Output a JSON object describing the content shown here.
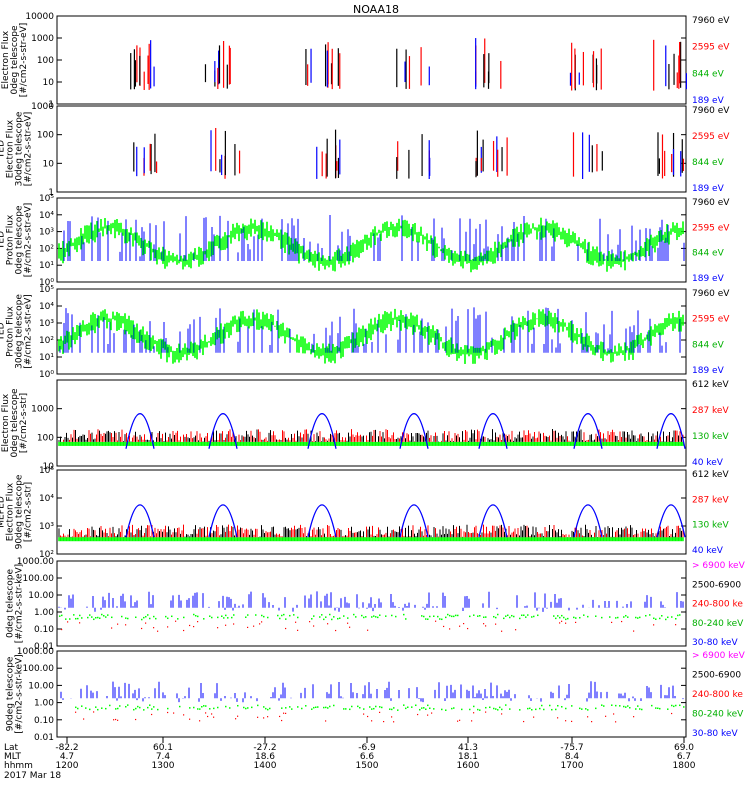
{
  "title": "NOAA18",
  "colors": {
    "black": "#000000",
    "red": "#ff0000",
    "green": "#00cc00",
    "lime": "#00ff00",
    "blue": "#0000ff",
    "magenta": "#ff00ff",
    "text_green": "#00b000"
  },
  "chart_data": [
    {
      "type": "line",
      "ylabel_lines": [
        "Electron Flux",
        "0deg telescope",
        "[#/cm2-s-str-eV]"
      ],
      "ylim": [
        1,
        10000
      ],
      "log": true,
      "yticks": [
        "1",
        "10",
        "100",
        "1000",
        "10000"
      ],
      "legend": [
        {
          "text": "7960 eV",
          "color": "#000000"
        },
        {
          "text": "2595 eV",
          "color": "#ff0000"
        },
        {
          "text": "844 eV",
          "color": "#00b000"
        },
        {
          "text": "189 eV",
          "color": "#0000ff"
        }
      ]
    },
    {
      "type": "line",
      "ylabel_lines": [
        "TED",
        "Electron Flux",
        "30deg telescope",
        "[#/cm2-s-str-eV]"
      ],
      "ylim": [
        1,
        1000
      ],
      "log": true,
      "yticks": [
        "1",
        "10",
        "100",
        "1000"
      ],
      "legend": [
        {
          "text": "7960 eV",
          "color": "#000000"
        },
        {
          "text": "2595 eV",
          "color": "#ff0000"
        },
        {
          "text": "844 eV",
          "color": "#00b000"
        },
        {
          "text": "189 eV",
          "color": "#0000ff"
        }
      ]
    },
    {
      "type": "line",
      "ylabel_lines": [
        "TED",
        "Proton Flux",
        "0deg telescope",
        "[#/cm2-s-str-eV]"
      ],
      "ylim": [
        1,
        100000
      ],
      "log": true,
      "yticks": [
        "10⁰",
        "10¹",
        "10²",
        "10³",
        "10⁴",
        "10⁵"
      ],
      "legend": [
        {
          "text": "7960 eV",
          "color": "#000000"
        },
        {
          "text": "2595 eV",
          "color": "#ff0000"
        },
        {
          "text": "844 eV",
          "color": "#00b000"
        },
        {
          "text": "189 eV",
          "color": "#0000ff"
        }
      ]
    },
    {
      "type": "line",
      "ylabel_lines": [
        "TED",
        "Proton Flux",
        "30deg telescope",
        "[#/cm2-s-str-eV]"
      ],
      "ylim": [
        1,
        100000
      ],
      "log": true,
      "yticks": [
        "10⁰",
        "10¹",
        "10²",
        "10³",
        "10⁴",
        "10⁵"
      ],
      "legend": [
        {
          "text": "7960 eV",
          "color": "#000000"
        },
        {
          "text": "2595 eV",
          "color": "#ff0000"
        },
        {
          "text": "844 eV",
          "color": "#00b000"
        },
        {
          "text": "189 eV",
          "color": "#0000ff"
        }
      ]
    },
    {
      "type": "line",
      "ylabel_lines": [
        "Electron Flux",
        "0deg telescope",
        "[#/cm2-s-str]"
      ],
      "ylim": [
        10,
        10000
      ],
      "log": true,
      "yticks": [
        "10",
        "100",
        "1000",
        ""
      ],
      "legend": [
        {
          "text": "612 keV",
          "color": "#000000"
        },
        {
          "text": "287 keV",
          "color": "#ff0000"
        },
        {
          "text": "130 keV",
          "color": "#00b000"
        },
        {
          "text": "40 keV",
          "color": "#0000ff"
        }
      ]
    },
    {
      "type": "line",
      "ylabel_lines": [
        "MEPED",
        "Electron Flux",
        "90deg telescope",
        "[#/cm2-s-str]"
      ],
      "ylim": [
        100,
        100000
      ],
      "log": true,
      "yticks": [
        "10²",
        "10³",
        "10⁴",
        "10⁵"
      ],
      "legend": [
        {
          "text": "612 keV",
          "color": "#000000"
        },
        {
          "text": "287 keV",
          "color": "#ff0000"
        },
        {
          "text": "130 keV",
          "color": "#00b000"
        },
        {
          "text": "40 keV",
          "color": "#0000ff"
        }
      ]
    },
    {
      "type": "line",
      "ylabel_lines": [
        "0deg telescope",
        "[#/cm2-s-str-keV]"
      ],
      "ylim": [
        0.01,
        1000
      ],
      "log": true,
      "yticks": [
        "0.01",
        "0.10",
        "1.00",
        "10.00",
        "100.00",
        "1000.00"
      ],
      "legend": [
        {
          "text": "> 6900 keV",
          "color": "#ff00ff"
        },
        {
          "text": "2500-6900",
          "color": "#000000"
        },
        {
          "text": "240-800 ke",
          "color": "#ff0000"
        },
        {
          "text": "80-240 keV",
          "color": "#00b000"
        },
        {
          "text": "30-80 keV",
          "color": "#0000ff"
        }
      ]
    },
    {
      "type": "line",
      "ylabel_lines": [
        "90deg telescope",
        "[#/cm2-s-str-keV]"
      ],
      "ylim": [
        0.01,
        1000
      ],
      "log": true,
      "yticks": [
        "0.01",
        "0.10",
        "1.00",
        "10.00",
        "100.00",
        "1000.00"
      ],
      "legend": [
        {
          "text": "> 6900 keV",
          "color": "#ff00ff"
        },
        {
          "text": "2500-6900",
          "color": "#000000"
        },
        {
          "text": "240-800 ke",
          "color": "#ff0000"
        },
        {
          "text": "80-240 keV",
          "color": "#00b000"
        },
        {
          "text": "30-80 keV",
          "color": "#0000ff"
        }
      ]
    }
  ],
  "x_axis": {
    "row_labels": [
      "Lat",
      "MLT",
      "hhmm"
    ],
    "lat": [
      "-82.2",
      "60.1",
      "-27.2",
      "-6.9",
      "41.3",
      "-75.7",
      "69.0"
    ],
    "mlt": [
      "4.7",
      "7.4",
      "18.6",
      "6.6",
      "18.1",
      "8.4",
      "6.7"
    ],
    "hhmm": [
      "1200",
      "1300",
      "1400",
      "1500",
      "1600",
      "1700",
      "1800"
    ],
    "date": "2017 Mar 18"
  }
}
